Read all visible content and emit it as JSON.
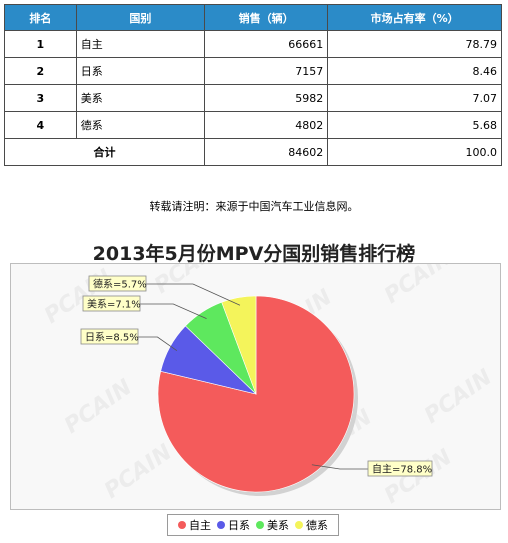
{
  "table": {
    "headers": [
      "排名",
      "国别",
      "销售（辆）",
      "市场占有率（%）"
    ],
    "rows": [
      {
        "rank": "1",
        "country": "自主",
        "sales": "66661",
        "share": "78.79"
      },
      {
        "rank": "2",
        "country": "日系",
        "sales": "7157",
        "share": "8.46"
      },
      {
        "rank": "3",
        "country": "美系",
        "sales": "5982",
        "share": "7.07"
      },
      {
        "rank": "4",
        "country": "德系",
        "sales": "4802",
        "share": "5.68"
      }
    ],
    "total": {
      "label": "合计",
      "sales": "84602",
      "share": "100.0"
    }
  },
  "note": "转载请注明：来源于中国汽车工业信息网。",
  "watermark": "PCAIN",
  "chart_data": {
    "type": "pie",
    "title": "2013年5月份MPV分国别销售排行榜",
    "slices": [
      {
        "name": "自主",
        "value": 78.8,
        "label": "自主=78.8%",
        "color": "#f45b5b"
      },
      {
        "name": "日系",
        "value": 8.5,
        "label": "日系=8.5%",
        "color": "#5a5ae8"
      },
      {
        "name": "美系",
        "value": 7.1,
        "label": "美系=7.1%",
        "color": "#5ee85e"
      },
      {
        "name": "德系",
        "value": 5.7,
        "label": "德系=5.7%",
        "color": "#f4f45b"
      }
    ],
    "legend_position": "bottom"
  }
}
